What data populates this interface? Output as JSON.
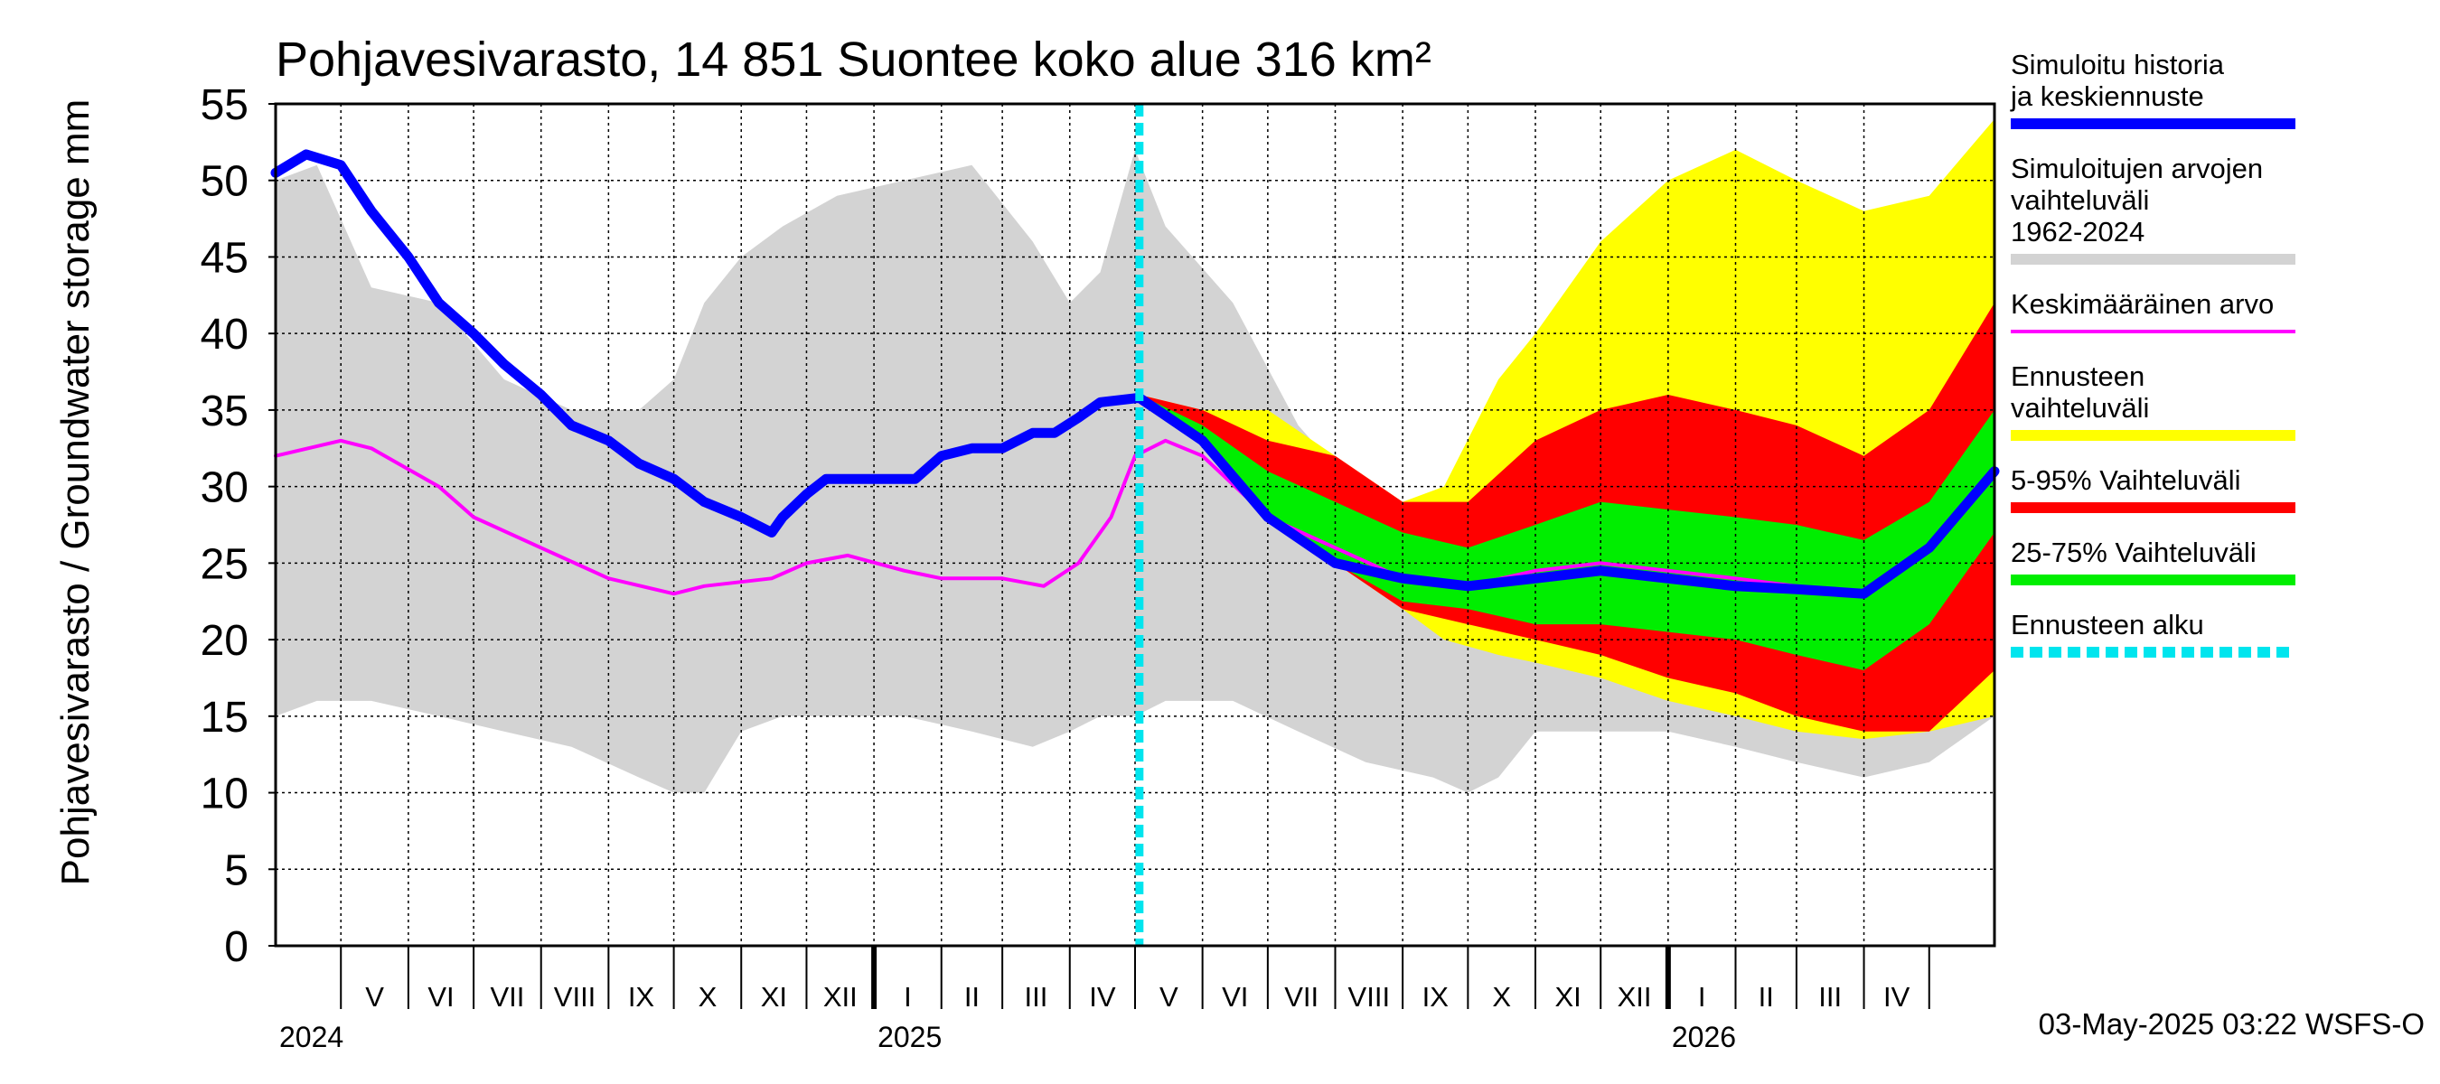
{
  "chart_data": {
    "type": "area",
    "title": "Pohjavesivarasto, 14 851 Suontee koko alue 316 km²",
    "ylabel": "Pohjavesivarasto / Groundwater storage   mm",
    "ylim": [
      0,
      55
    ],
    "yticks": [
      0,
      5,
      10,
      15,
      20,
      25,
      30,
      35,
      40,
      45,
      50,
      55
    ],
    "grid": true,
    "legend_position": "right",
    "x_range": [
      "2024-04-01",
      "2026-05-31"
    ],
    "forecast_start": "2025-05-03",
    "months": [
      {
        "label": "V",
        "start": "2024-05-01",
        "end": "2024-06-01"
      },
      {
        "label": "VI",
        "start": "2024-06-01",
        "end": "2024-07-01"
      },
      {
        "label": "VII",
        "start": "2024-07-01",
        "end": "2024-08-01"
      },
      {
        "label": "VIII",
        "start": "2024-08-01",
        "end": "2024-09-01"
      },
      {
        "label": "IX",
        "start": "2024-09-01",
        "end": "2024-10-01"
      },
      {
        "label": "X",
        "start": "2024-10-01",
        "end": "2024-11-01"
      },
      {
        "label": "XI",
        "start": "2024-11-01",
        "end": "2024-12-01"
      },
      {
        "label": "XII",
        "start": "2024-12-01",
        "end": "2025-01-01"
      },
      {
        "label": "I",
        "start": "2025-01-01",
        "end": "2025-02-01"
      },
      {
        "label": "II",
        "start": "2025-02-01",
        "end": "2025-03-01"
      },
      {
        "label": "III",
        "start": "2025-03-01",
        "end": "2025-04-01"
      },
      {
        "label": "IV",
        "start": "2025-04-01",
        "end": "2025-05-01"
      },
      {
        "label": "V",
        "start": "2025-05-01",
        "end": "2025-06-01"
      },
      {
        "label": "VI",
        "start": "2025-06-01",
        "end": "2025-07-01"
      },
      {
        "label": "VII",
        "start": "2025-07-01",
        "end": "2025-08-01"
      },
      {
        "label": "VIII",
        "start": "2025-08-01",
        "end": "2025-09-01"
      },
      {
        "label": "IX",
        "start": "2025-09-01",
        "end": "2025-10-01"
      },
      {
        "label": "X",
        "start": "2025-10-01",
        "end": "2025-11-01"
      },
      {
        "label": "XI",
        "start": "2025-11-01",
        "end": "2025-12-01"
      },
      {
        "label": "XII",
        "start": "2025-12-01",
        "end": "2026-01-01"
      },
      {
        "label": "I",
        "start": "2026-01-01",
        "end": "2026-02-01"
      },
      {
        "label": "II",
        "start": "2026-02-01",
        "end": "2026-03-01"
      },
      {
        "label": "III",
        "start": "2026-03-01",
        "end": "2026-04-01"
      },
      {
        "label": "IV",
        "start": "2026-04-01",
        "end": "2026-05-01"
      }
    ],
    "years": [
      {
        "label": "2024",
        "date": "2024-04-01"
      },
      {
        "label": "2025",
        "date": "2025-01-01"
      },
      {
        "label": "2026",
        "date": "2026-01-01"
      }
    ],
    "series": [
      {
        "name": "Simuloitujen arvojen vaihteluväli 1962-2024",
        "kind": "band",
        "color": "#d3d3d3",
        "x": [
          "2024-04-01",
          "2024-04-20",
          "2024-05-15",
          "2024-06-15",
          "2024-07-15",
          "2024-08-15",
          "2024-09-15",
          "2024-10-01",
          "2024-10-15",
          "2024-11-01",
          "2024-11-20",
          "2024-12-15",
          "2025-01-15",
          "2025-02-15",
          "2025-03-15",
          "2025-04-01",
          "2025-04-15",
          "2025-05-01",
          "2025-05-15",
          "2025-06-15",
          "2025-07-15",
          "2025-08-15",
          "2025-09-15",
          "2025-10-01",
          "2025-10-15",
          "2025-11-01",
          "2025-12-01",
          "2026-01-01",
          "2026-02-01",
          "2026-03-01",
          "2026-04-01",
          "2026-05-01",
          "2026-05-31"
        ],
        "low": [
          15,
          16,
          16,
          15,
          14,
          13,
          11,
          10,
          10,
          14,
          15,
          15,
          15,
          14,
          13,
          14,
          15,
          15,
          16,
          16,
          14,
          12,
          11,
          10,
          11,
          14,
          14,
          14,
          13,
          12,
          11,
          12,
          15
        ],
        "high": [
          50,
          51,
          43,
          42,
          37,
          35,
          35,
          37,
          42,
          45,
          47,
          49,
          50,
          51,
          46,
          42,
          44,
          52,
          47,
          42,
          34,
          29,
          25,
          22,
          23,
          26,
          33,
          41,
          39,
          36,
          33,
          30,
          30
        ]
      },
      {
        "name": "Ennusteen vaihteluväli",
        "kind": "band",
        "color": "#ffff00",
        "x": [
          "2025-05-03",
          "2025-06-01",
          "2025-07-01",
          "2025-08-01",
          "2025-09-01",
          "2025-09-20",
          "2025-10-15",
          "2025-11-01",
          "2025-12-01",
          "2026-01-01",
          "2026-02-01",
          "2026-03-01",
          "2026-04-01",
          "2026-05-01",
          "2026-05-31"
        ],
        "low": [
          36,
          33,
          28,
          25,
          22,
          20,
          19,
          18.5,
          17.5,
          16,
          15,
          14,
          13.5,
          14,
          15
        ],
        "high": [
          36,
          35,
          35,
          32,
          29,
          30,
          37,
          40,
          46,
          50,
          52,
          50,
          48,
          49,
          54
        ]
      },
      {
        "name": "5-95% Vaihteluväli",
        "kind": "band",
        "color": "#ff0000",
        "x": [
          "2025-05-03",
          "2025-06-01",
          "2025-07-01",
          "2025-08-01",
          "2025-09-01",
          "2025-10-01",
          "2025-11-01",
          "2025-12-01",
          "2026-01-01",
          "2026-02-01",
          "2026-03-01",
          "2026-04-01",
          "2026-05-01",
          "2026-05-31"
        ],
        "low": [
          36,
          33,
          28,
          25,
          22,
          21,
          20,
          19,
          17.5,
          16.5,
          15,
          14,
          14,
          18
        ],
        "high": [
          36,
          35,
          33,
          32,
          29,
          29,
          33,
          35,
          36,
          35,
          34,
          32,
          35,
          42
        ]
      },
      {
        "name": "25-75% Vaihteluväli",
        "kind": "band",
        "color": "#00ee00",
        "x": [
          "2025-05-03",
          "2025-06-01",
          "2025-07-01",
          "2025-08-01",
          "2025-09-01",
          "2025-10-01",
          "2025-11-01",
          "2025-12-01",
          "2026-01-01",
          "2026-02-01",
          "2026-03-01",
          "2026-04-01",
          "2026-05-01",
          "2026-05-31"
        ],
        "low": [
          36,
          33,
          28,
          25,
          22.5,
          22,
          21,
          21,
          20.5,
          20,
          19,
          18,
          21,
          27
        ],
        "high": [
          36,
          34,
          31,
          29,
          27,
          26,
          27.5,
          29,
          28.5,
          28,
          27.5,
          26.5,
          29,
          35
        ]
      },
      {
        "name": "Keskimääräinen arvo",
        "kind": "line",
        "color": "#ff00ff",
        "x": [
          "2024-04-01",
          "2024-05-01",
          "2024-05-15",
          "2024-06-15",
          "2024-07-01",
          "2024-08-01",
          "2024-09-01",
          "2024-10-01",
          "2024-10-15",
          "2024-11-15",
          "2024-12-01",
          "2024-12-20",
          "2025-01-15",
          "2025-02-01",
          "2025-03-01",
          "2025-03-20",
          "2025-04-05",
          "2025-04-20",
          "2025-05-01",
          "2025-05-15",
          "2025-06-01",
          "2025-07-01",
          "2025-08-01",
          "2025-09-01",
          "2025-10-01",
          "2025-11-01",
          "2025-12-01",
          "2026-01-01",
          "2026-02-01",
          "2026-03-01",
          "2026-04-01",
          "2026-05-01",
          "2026-05-31"
        ],
        "values": [
          32,
          33,
          32.5,
          30,
          28,
          26,
          24,
          23,
          23.5,
          24,
          25,
          25.5,
          24.5,
          24,
          24,
          23.5,
          25,
          28,
          32,
          33,
          32,
          28,
          26,
          24,
          23.5,
          24.5,
          25,
          24.5,
          24,
          23.5,
          23,
          26,
          31
        ]
      },
      {
        "name": "Simuloitu historia ja keskiennuste",
        "kind": "line",
        "color": "#0000ff",
        "x": [
          "2024-04-01",
          "2024-04-15",
          "2024-05-01",
          "2024-05-15",
          "2024-06-01",
          "2024-06-15",
          "2024-07-01",
          "2024-07-15",
          "2024-08-01",
          "2024-08-15",
          "2024-09-01",
          "2024-09-15",
          "2024-10-01",
          "2024-10-15",
          "2024-11-01",
          "2024-11-15",
          "2024-11-20",
          "2024-12-01",
          "2024-12-10",
          "2024-12-20",
          "2025-01-10",
          "2025-01-20",
          "2025-02-01",
          "2025-02-15",
          "2025-03-01",
          "2025-03-15",
          "2025-03-25",
          "2025-04-05",
          "2025-04-15",
          "2025-05-03",
          "2025-06-01",
          "2025-07-01",
          "2025-08-01",
          "2025-09-01",
          "2025-10-01",
          "2025-11-01",
          "2025-12-01",
          "2026-01-01",
          "2026-02-01",
          "2026-03-01",
          "2026-04-01",
          "2026-05-01",
          "2026-05-31"
        ],
        "values": [
          50.5,
          51.7,
          51,
          48,
          45,
          42,
          40,
          38,
          36,
          34,
          33,
          31.5,
          30.5,
          29,
          28,
          27,
          28,
          29.5,
          30.5,
          30.5,
          30.5,
          30.5,
          32,
          32.5,
          32.5,
          33.5,
          33.5,
          34.5,
          35.5,
          35.8,
          33,
          28,
          25,
          24,
          23.5,
          24,
          24.5,
          24,
          23.5,
          23.3,
          23,
          26,
          31
        ]
      },
      {
        "name": "Ennusteen alku",
        "kind": "vline",
        "color": "#00e5ee"
      }
    ],
    "legend": [
      {
        "label": "Simuloitu historia ja keskiennuste",
        "color": "#0000ff",
        "style": "thick"
      },
      {
        "label": "Simuloitujen arvojen vaihteluväli 1962-2024",
        "color": "#d3d3d3",
        "style": "thick"
      },
      {
        "label": "Keskimääräinen arvo",
        "color": "#ff00ff",
        "style": "thin"
      },
      {
        "label": "Ennusteen vaihteluväli",
        "color": "#ffff00",
        "style": "thick"
      },
      {
        "label": "5-95% Vaihteluväli",
        "color": "#ff0000",
        "style": "thick"
      },
      {
        "label": "25-75% Vaihteluväli",
        "color": "#00ee00",
        "style": "thick"
      },
      {
        "label": "Ennusteen alku",
        "color": "#00e5ee",
        "style": "dashed"
      }
    ],
    "footer": "03-May-2025 03:22 WSFS-O"
  }
}
